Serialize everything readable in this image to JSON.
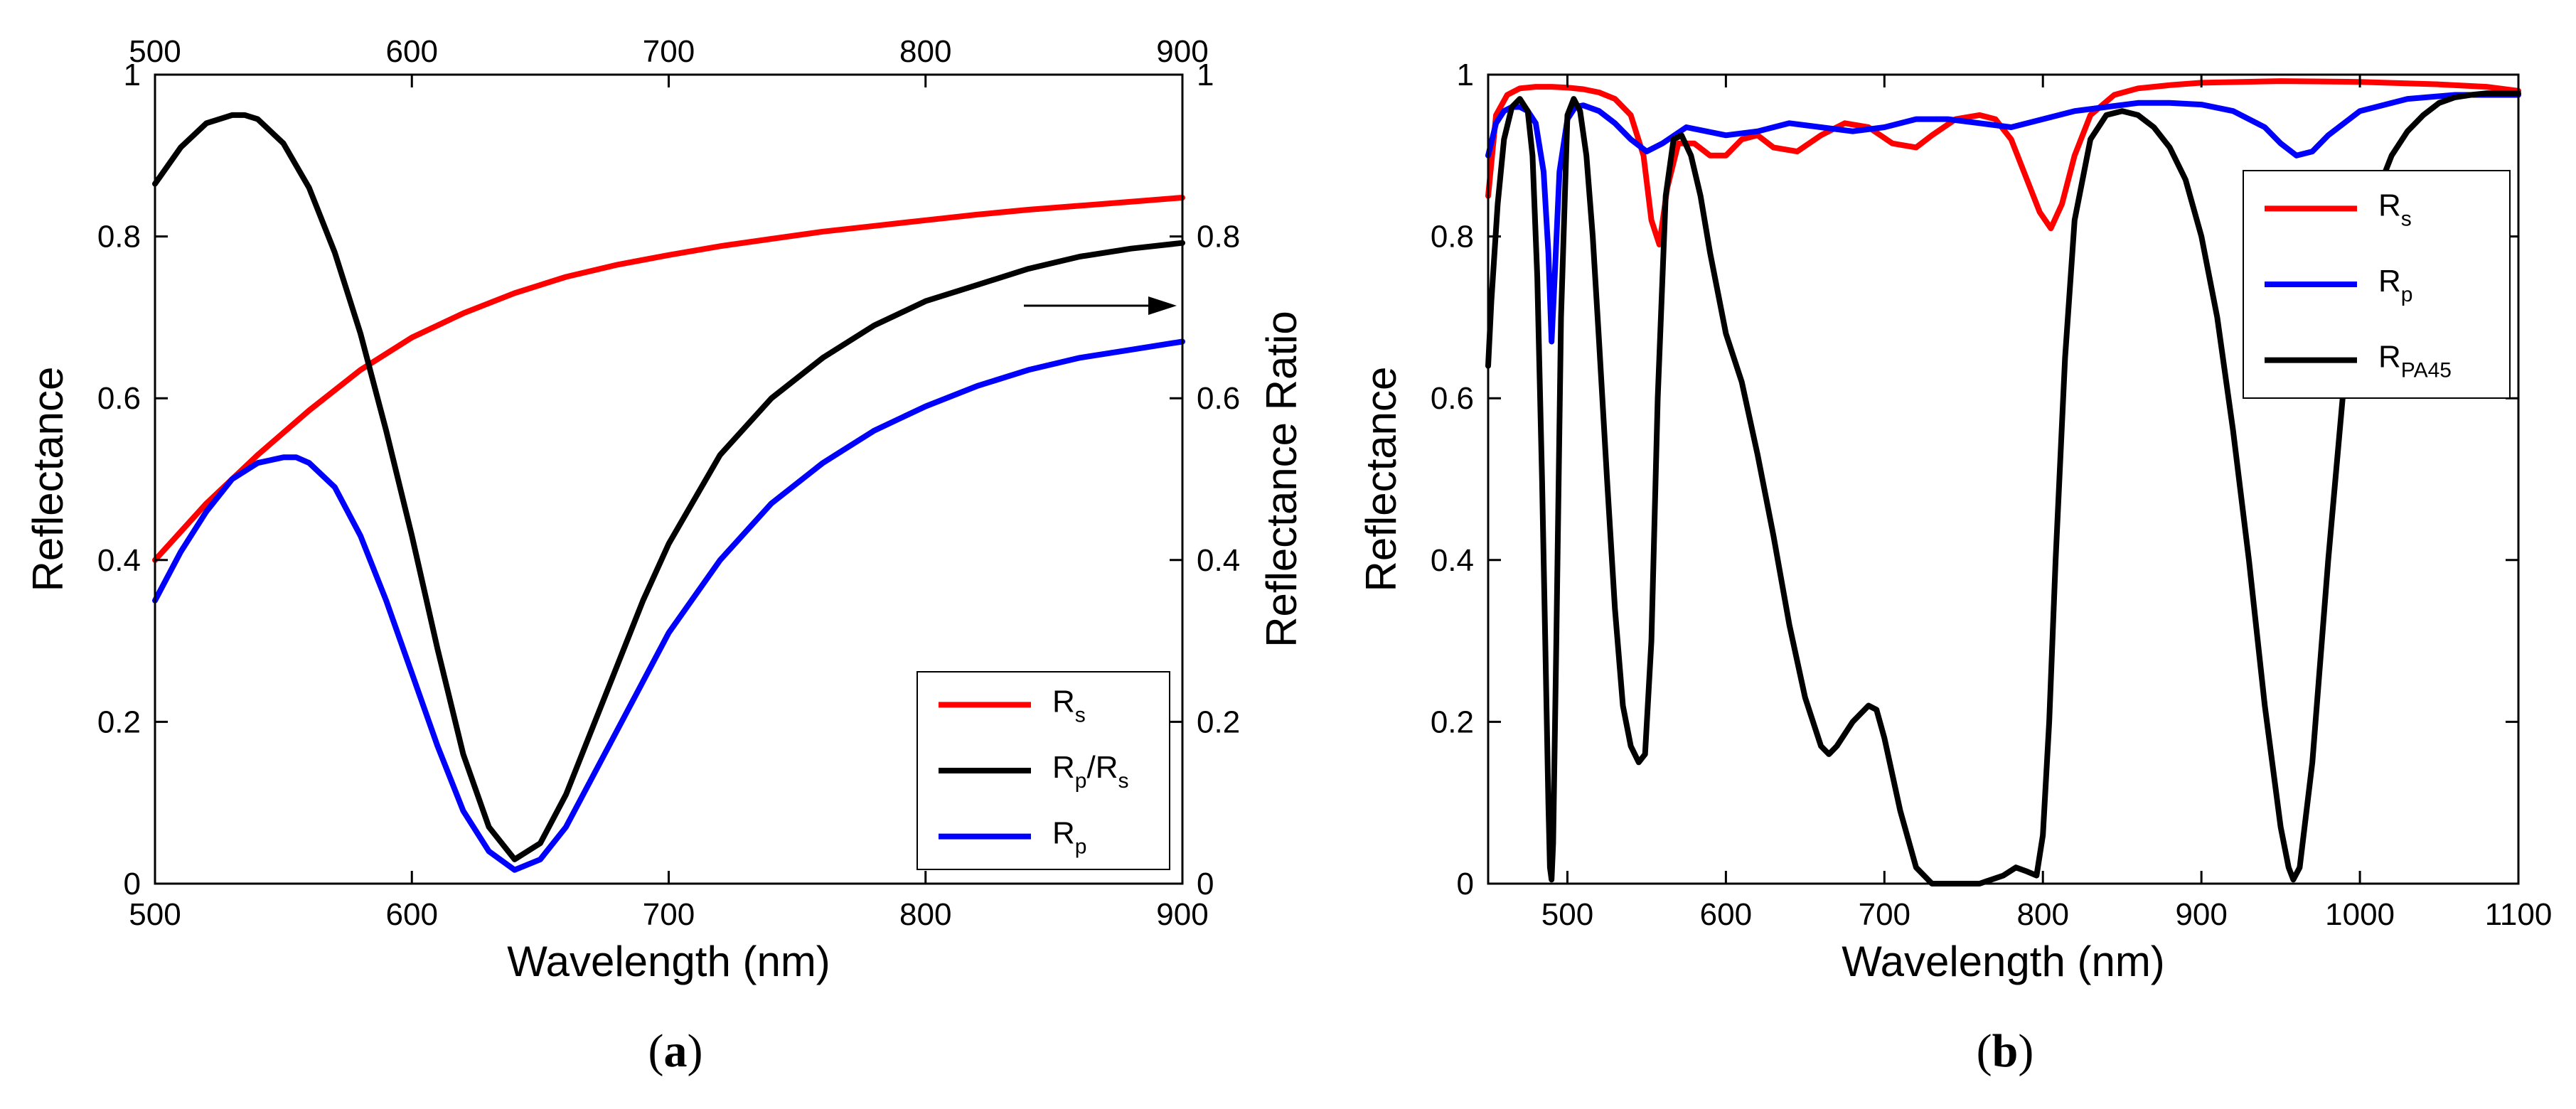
{
  "colors": {
    "Rs": "#ff0000",
    "Rp": "#0000ff",
    "black": "#000000"
  },
  "chart_data": [
    {
      "type": "line",
      "panel_label": "(a)",
      "panel_letter": "a",
      "xlabel": "Wavelength (nm)",
      "ylabel": "Reflectance",
      "ylabel_right": "Reflectance Ratio",
      "xlim": [
        500,
        900
      ],
      "ylim": [
        0,
        1
      ],
      "ylim_right": [
        0,
        1
      ],
      "xticks": [
        500,
        600,
        700,
        800,
        900
      ],
      "yticks": [
        0,
        0.2,
        0.4,
        0.6,
        0.8,
        1
      ],
      "top_axis_ticks": [
        500,
        600,
        700,
        800,
        900
      ],
      "grid": false,
      "legend_position": "bottom-right",
      "annotation": "arrow pointing to right axis",
      "series": [
        {
          "name": "Rs",
          "legend_main": "R",
          "legend_sub": "s",
          "color": "#ff0000",
          "x": [
            500,
            520,
            540,
            560,
            580,
            600,
            620,
            640,
            660,
            680,
            700,
            720,
            740,
            760,
            780,
            800,
            820,
            840,
            860,
            880,
            900
          ],
          "y": [
            0.4,
            0.47,
            0.53,
            0.585,
            0.635,
            0.675,
            0.705,
            0.73,
            0.75,
            0.765,
            0.777,
            0.788,
            0.797,
            0.806,
            0.813,
            0.82,
            0.827,
            0.833,
            0.838,
            0.843,
            0.848
          ]
        },
        {
          "name": "Rp/Rs",
          "legend_main": "R",
          "legend_sub": "p",
          "legend_main2": "/R",
          "legend_sub2": "s",
          "color": "#000000",
          "x": [
            500,
            510,
            520,
            530,
            535,
            540,
            550,
            560,
            570,
            580,
            590,
            600,
            610,
            620,
            630,
            640,
            650,
            660,
            670,
            680,
            690,
            700,
            720,
            740,
            760,
            780,
            800,
            820,
            840,
            860,
            880,
            900
          ],
          "y": [
            0.865,
            0.91,
            0.94,
            0.95,
            0.95,
            0.945,
            0.915,
            0.86,
            0.78,
            0.68,
            0.56,
            0.43,
            0.29,
            0.16,
            0.07,
            0.03,
            0.05,
            0.11,
            0.19,
            0.27,
            0.35,
            0.42,
            0.53,
            0.6,
            0.65,
            0.69,
            0.72,
            0.74,
            0.76,
            0.775,
            0.785,
            0.792
          ]
        },
        {
          "name": "Rp",
          "legend_main": "R",
          "legend_sub": "p",
          "color": "#0000ff",
          "x": [
            500,
            510,
            520,
            530,
            540,
            550,
            555,
            560,
            570,
            580,
            590,
            600,
            610,
            620,
            630,
            640,
            650,
            660,
            670,
            680,
            690,
            700,
            720,
            740,
            760,
            780,
            800,
            820,
            840,
            860,
            880,
            900
          ],
          "y": [
            0.35,
            0.41,
            0.46,
            0.5,
            0.52,
            0.527,
            0.527,
            0.52,
            0.49,
            0.43,
            0.35,
            0.26,
            0.17,
            0.09,
            0.04,
            0.017,
            0.03,
            0.07,
            0.13,
            0.19,
            0.25,
            0.31,
            0.4,
            0.47,
            0.52,
            0.56,
            0.59,
            0.615,
            0.635,
            0.65,
            0.66,
            0.67
          ]
        }
      ]
    },
    {
      "type": "line",
      "panel_label": "(b)",
      "panel_letter": "b",
      "xlabel": "Wavelength (nm)",
      "ylabel": "Reflectance",
      "xlim": [
        450,
        1100
      ],
      "ylim": [
        0,
        1
      ],
      "xticks": [
        500,
        600,
        700,
        800,
        900,
        1000,
        1100
      ],
      "yticks": [
        0,
        0.2,
        0.4,
        0.6,
        0.8,
        1
      ],
      "grid": false,
      "legend_position": "top-right",
      "series": [
        {
          "name": "Rs",
          "legend_main": "R",
          "legend_sub": "s",
          "color": "#ff0000",
          "x": [
            450,
            455,
            462,
            470,
            480,
            490,
            500,
            510,
            520,
            530,
            540,
            548,
            553,
            558,
            563,
            570,
            580,
            590,
            600,
            610,
            620,
            630,
            645,
            660,
            675,
            690,
            705,
            720,
            730,
            745,
            760,
            770,
            780,
            790,
            798,
            805,
            812,
            820,
            830,
            845,
            860,
            880,
            900,
            950,
            1000,
            1050,
            1080,
            1100
          ],
          "y": [
            0.85,
            0.95,
            0.975,
            0.983,
            0.985,
            0.985,
            0.984,
            0.982,
            0.978,
            0.97,
            0.95,
            0.9,
            0.82,
            0.79,
            0.86,
            0.915,
            0.915,
            0.9,
            0.9,
            0.92,
            0.925,
            0.91,
            0.905,
            0.925,
            0.94,
            0.935,
            0.915,
            0.91,
            0.925,
            0.945,
            0.95,
            0.945,
            0.92,
            0.87,
            0.83,
            0.81,
            0.84,
            0.9,
            0.95,
            0.975,
            0.983,
            0.987,
            0.99,
            0.992,
            0.991,
            0.988,
            0.985,
            0.98
          ]
        },
        {
          "name": "Rp",
          "legend_main": "R",
          "legend_sub": "p",
          "color": "#0000ff",
          "x": [
            450,
            455,
            460,
            465,
            470,
            475,
            480,
            485,
            488,
            490,
            492,
            495,
            500,
            505,
            510,
            520,
            530,
            540,
            550,
            560,
            575,
            600,
            620,
            640,
            660,
            680,
            700,
            720,
            740,
            760,
            780,
            800,
            820,
            840,
            860,
            880,
            900,
            920,
            940,
            950,
            960,
            970,
            980,
            1000,
            1030,
            1060,
            1100
          ],
          "y": [
            0.9,
            0.94,
            0.955,
            0.96,
            0.96,
            0.955,
            0.94,
            0.88,
            0.78,
            0.67,
            0.75,
            0.88,
            0.945,
            0.96,
            0.962,
            0.955,
            0.94,
            0.92,
            0.905,
            0.915,
            0.935,
            0.925,
            0.93,
            0.94,
            0.935,
            0.93,
            0.935,
            0.945,
            0.945,
            0.94,
            0.935,
            0.945,
            0.955,
            0.96,
            0.965,
            0.965,
            0.963,
            0.955,
            0.935,
            0.915,
            0.9,
            0.905,
            0.925,
            0.955,
            0.97,
            0.975,
            0.975
          ]
        },
        {
          "name": "RPA45",
          "legend_main": "R",
          "legend_sub": "PA45",
          "color": "#000000",
          "x": [
            450,
            452,
            456,
            460,
            465,
            470,
            475,
            478,
            481,
            484,
            486,
            488,
            489,
            490,
            491,
            493,
            496,
            500,
            504,
            508,
            512,
            516,
            520,
            525,
            530,
            535,
            540,
            545,
            549,
            553,
            557,
            562,
            567,
            572,
            578,
            584,
            590,
            600,
            610,
            620,
            630,
            640,
            650,
            660,
            665,
            670,
            680,
            690,
            695,
            700,
            710,
            720,
            730,
            740,
            760,
            775,
            783,
            790,
            796,
            800,
            804,
            808,
            814,
            820,
            830,
            840,
            850,
            860,
            870,
            880,
            890,
            900,
            910,
            920,
            930,
            940,
            950,
            955,
            958,
            962,
            970,
            980,
            990,
            1000,
            1010,
            1020,
            1030,
            1040,
            1050,
            1060,
            1070,
            1080,
            1090,
            1100
          ],
          "y": [
            0.64,
            0.72,
            0.84,
            0.92,
            0.96,
            0.97,
            0.955,
            0.9,
            0.75,
            0.5,
            0.3,
            0.1,
            0.02,
            0.005,
            0.05,
            0.3,
            0.7,
            0.95,
            0.97,
            0.955,
            0.9,
            0.8,
            0.67,
            0.5,
            0.34,
            0.22,
            0.17,
            0.15,
            0.16,
            0.3,
            0.6,
            0.85,
            0.92,
            0.925,
            0.9,
            0.85,
            0.78,
            0.68,
            0.62,
            0.53,
            0.43,
            0.32,
            0.23,
            0.17,
            0.16,
            0.17,
            0.2,
            0.22,
            0.215,
            0.18,
            0.09,
            0.02,
            0.0,
            0.0,
            0.0,
            0.01,
            0.02,
            0.015,
            0.01,
            0.06,
            0.2,
            0.4,
            0.65,
            0.82,
            0.92,
            0.95,
            0.955,
            0.95,
            0.935,
            0.91,
            0.87,
            0.8,
            0.7,
            0.56,
            0.4,
            0.22,
            0.07,
            0.02,
            0.005,
            0.02,
            0.15,
            0.4,
            0.62,
            0.76,
            0.85,
            0.9,
            0.93,
            0.95,
            0.965,
            0.972,
            0.975,
            0.977,
            0.977,
            0.977
          ]
        }
      ]
    }
  ]
}
